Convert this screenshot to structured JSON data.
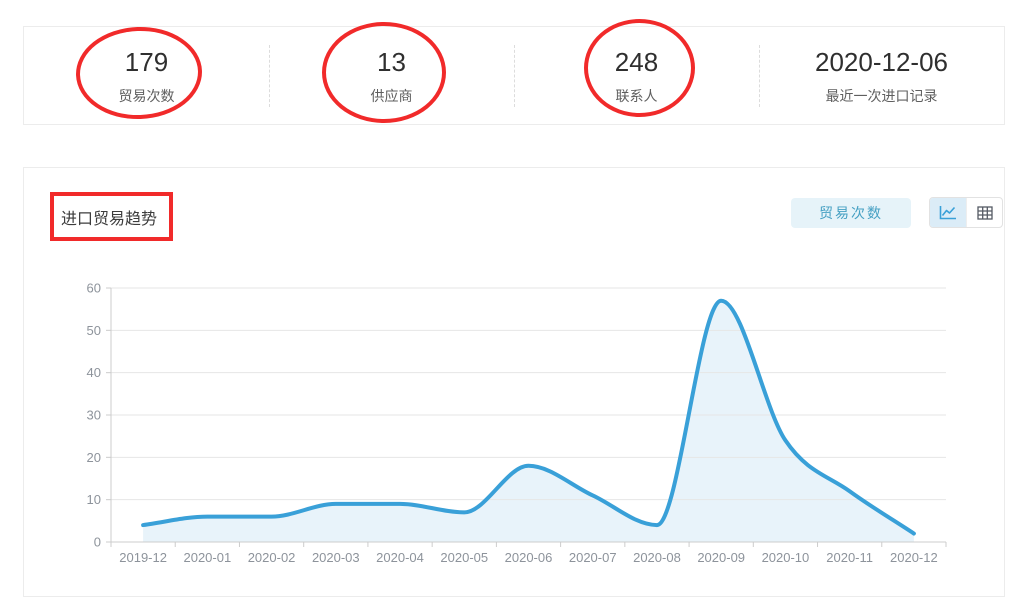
{
  "stats": {
    "items": [
      {
        "value": "179",
        "label": "贸易次数",
        "annotated": true
      },
      {
        "value": "13",
        "label": "供应商",
        "annotated": true
      },
      {
        "value": "248",
        "label": "联系人",
        "annotated": true
      },
      {
        "value": "2020-12-06",
        "label": "最近一次进口记录",
        "annotated": false
      }
    ]
  },
  "chart_card": {
    "title": "进口贸易趋势",
    "series_button_label": "贸易次数",
    "view_toggle": {
      "selected": "line",
      "options": [
        "line-chart-icon",
        "table-icon"
      ]
    }
  },
  "chart_data": {
    "type": "area",
    "title": "进口贸易趋势",
    "categories": [
      "2019-12",
      "2020-01",
      "2020-02",
      "2020-03",
      "2020-04",
      "2020-05",
      "2020-06",
      "2020-07",
      "2020-08",
      "2020-09",
      "2020-10",
      "2020-11",
      "2020-12"
    ],
    "series": [
      {
        "name": "贸易次数",
        "values": [
          4,
          6,
          6,
          9,
          9,
          7,
          18,
          11,
          4,
          57,
          24,
          12,
          2
        ]
      }
    ],
    "xlabel": "",
    "ylabel": "",
    "ylim": [
      0,
      60
    ],
    "ytick_interval": 10,
    "grid": true,
    "legend": "none",
    "smooth": true,
    "line_color": "#39a0d8",
    "area_color": "#e8f3fa",
    "axis_color": "#cccccc",
    "grid_color": "#e6e6e6",
    "tick_label_color": "#8d939b"
  },
  "colors": {
    "annotation_red": "#f12a2a",
    "accent_blue": "#39a0d8",
    "series_button_bg": "#e6f3f9",
    "series_button_text": "#46a0c3",
    "toggle_selected_bg": "#dbecf7",
    "card_border": "#ececec",
    "table_icon_color": "#555a64"
  }
}
